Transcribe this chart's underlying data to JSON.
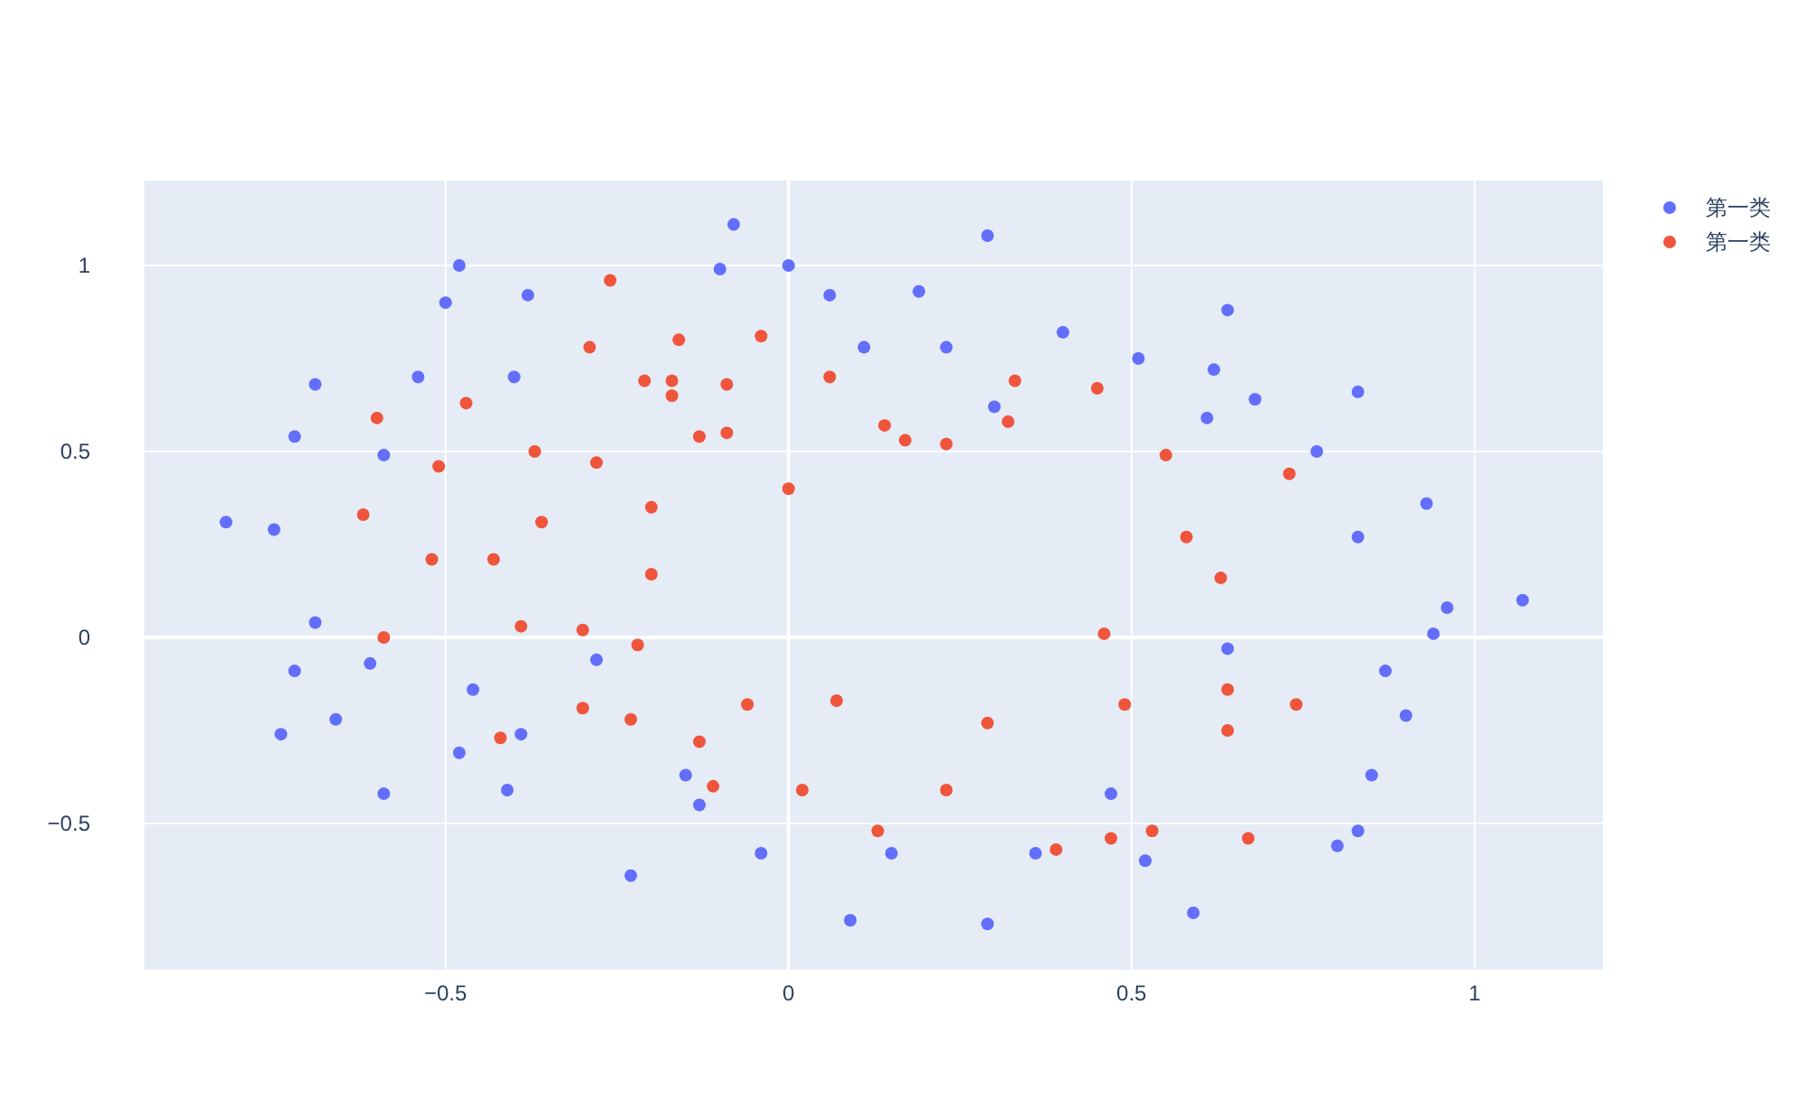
{
  "chart_data": {
    "type": "scatter",
    "marker": "circle",
    "grid": true,
    "legend": "top right",
    "xlim": [
      -0.939,
      1.187
    ],
    "ylim": [
      -0.893,
      1.228
    ],
    "xticks": [
      {
        "value": -0.5,
        "label": "−0.5"
      },
      0,
      0.5,
      1
    ],
    "yticks": [
      {
        "value": -0.5,
        "label": "−0.5"
      },
      0,
      0.5,
      1
    ],
    "series": [
      {
        "name": "第一类",
        "color": "#636efa",
        "x": [
          -0.82,
          -0.75,
          -0.72,
          -0.69,
          -0.69,
          -0.72,
          -0.74,
          -0.66,
          -0.61,
          -0.59,
          -0.59,
          -0.54,
          -0.5,
          -0.48,
          -0.48,
          -0.46,
          -0.4,
          -0.39,
          -0.38,
          -0.41,
          -0.28,
          -0.23,
          -0.15,
          -0.13,
          -0.08,
          -0.1,
          0.0,
          -0.04,
          0.06,
          0.11,
          0.19,
          0.23,
          0.09,
          0.15,
          0.29,
          0.3,
          0.29,
          0.36,
          0.4,
          0.51,
          0.52,
          0.47,
          0.61,
          0.62,
          0.64,
          0.64,
          0.68,
          0.59,
          0.77,
          0.83,
          0.83,
          0.93,
          0.94,
          0.96,
          1.07,
          0.87,
          0.9,
          0.85,
          0.8,
          0.83
        ],
        "values": [
          0.31,
          0.29,
          0.54,
          0.68,
          0.04,
          -0.09,
          -0.26,
          -0.22,
          -0.07,
          -0.42,
          0.49,
          0.7,
          0.9,
          1.0,
          -0.31,
          -0.14,
          0.7,
          -0.26,
          0.92,
          -0.41,
          -0.06,
          -0.64,
          -0.37,
          -0.45,
          1.11,
          0.99,
          1.0,
          -0.58,
          0.92,
          0.78,
          0.93,
          0.78,
          -0.76,
          -0.58,
          1.08,
          0.62,
          -0.77,
          -0.58,
          0.82,
          0.75,
          -0.6,
          -0.42,
          0.59,
          0.72,
          0.88,
          -0.03,
          0.64,
          -0.74,
          0.5,
          0.66,
          0.27,
          0.36,
          0.01,
          0.08,
          0.1,
          -0.09,
          -0.21,
          -0.37,
          -0.56,
          -0.52
        ]
      },
      {
        "name": "第一类",
        "color": "#ef553b",
        "x": [
          -0.6,
          -0.47,
          -0.51,
          -0.52,
          -0.59,
          -0.62,
          -0.43,
          -0.42,
          -0.39,
          -0.37,
          -0.36,
          -0.3,
          -0.3,
          -0.28,
          -0.29,
          -0.26,
          -0.23,
          -0.22,
          -0.21,
          -0.2,
          -0.2,
          -0.17,
          -0.17,
          -0.16,
          -0.13,
          -0.13,
          -0.11,
          -0.09,
          -0.09,
          -0.06,
          -0.04,
          0.0,
          0.02,
          0.06,
          0.07,
          0.13,
          0.14,
          0.17,
          0.23,
          0.23,
          0.33,
          0.32,
          0.29,
          0.39,
          0.45,
          0.46,
          0.47,
          0.49,
          0.53,
          0.55,
          0.58,
          0.63,
          0.64,
          0.64,
          0.67,
          0.73,
          0.74
        ],
        "values": [
          0.59,
          0.63,
          0.46,
          0.21,
          0.0,
          0.33,
          0.21,
          -0.27,
          0.03,
          0.5,
          0.31,
          0.02,
          -0.19,
          0.47,
          0.78,
          0.96,
          -0.22,
          -0.02,
          0.69,
          0.35,
          0.17,
          0.69,
          0.65,
          0.8,
          0.54,
          -0.28,
          -0.4,
          0.55,
          0.68,
          -0.18,
          0.81,
          0.4,
          -0.41,
          0.7,
          -0.17,
          -0.52,
          0.57,
          0.53,
          0.52,
          -0.41,
          0.69,
          0.58,
          -0.23,
          -0.57,
          0.67,
          0.01,
          -0.54,
          -0.18,
          -0.52,
          0.49,
          0.27,
          0.16,
          -0.14,
          -0.25,
          -0.54,
          0.44,
          -0.18
        ]
      }
    ]
  }
}
